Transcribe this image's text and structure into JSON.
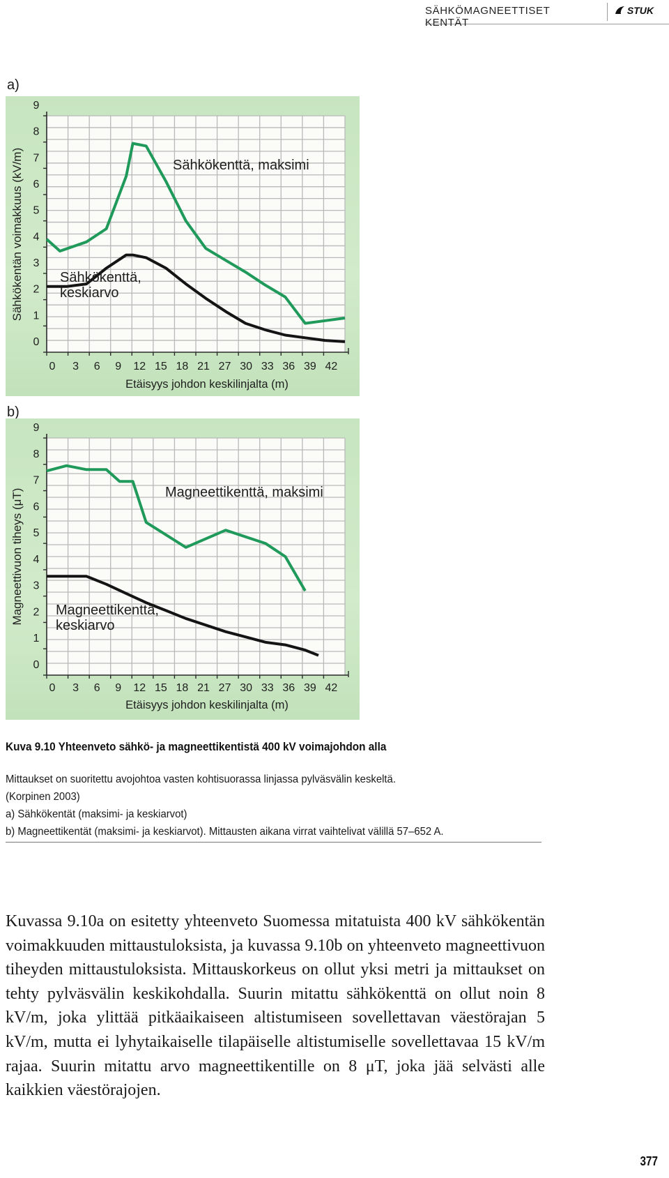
{
  "header": {
    "section_title": "SÄHKÖMAGNEETTISET KENTÄT",
    "logo_text": "STUK"
  },
  "figure": {
    "panel_a_label": "a)",
    "panel_b_label": "b)"
  },
  "chart_data": [
    {
      "type": "line",
      "ylabel": "Sähkökentän voimakkuus (kV/m)",
      "xlabel": "Etäisyys johdon keskilinjalta (m)",
      "x_ticks": [
        "0",
        "3",
        "6",
        "9",
        "12",
        "15",
        "18",
        "21",
        "27",
        "30",
        "33",
        "36",
        "39",
        "42"
      ],
      "y_ticks": [
        "0",
        "1",
        "2",
        "3",
        "4",
        "5",
        "6",
        "7",
        "8",
        "9"
      ],
      "ylim": [
        0,
        9
      ],
      "grid": true,
      "series": [
        {
          "label": "Sähkökenttä, maksimi",
          "color": "#1f9a5a",
          "points": [
            [
              0,
              4.3
            ],
            [
              2,
              3.85
            ],
            [
              6,
              4.2
            ],
            [
              9,
              4.7
            ],
            [
              12,
              6.7
            ],
            [
              13,
              7.95
            ],
            [
              15,
              7.85
            ],
            [
              18,
              6.5
            ],
            [
              21,
              5.0
            ],
            [
              24,
              3.95
            ],
            [
              27,
              3.5
            ],
            [
              30,
              3.05
            ],
            [
              33,
              2.55
            ],
            [
              36,
              2.1
            ],
            [
              39,
              1.1
            ],
            [
              42,
              1.2
            ],
            [
              45,
              1.3
            ]
          ]
        },
        {
          "label": "Sähkökenttä, keskiarvo",
          "color": "#141414",
          "points": [
            [
              0,
              2.5
            ],
            [
              3,
              2.5
            ],
            [
              6,
              2.6
            ],
            [
              9,
              3.2
            ],
            [
              12,
              3.7
            ],
            [
              13,
              3.7
            ],
            [
              15,
              3.6
            ],
            [
              18,
              3.2
            ],
            [
              21,
              2.6
            ],
            [
              24,
              2.05
            ],
            [
              27,
              1.55
            ],
            [
              30,
              1.1
            ],
            [
              33,
              0.85
            ],
            [
              36,
              0.65
            ],
            [
              39,
              0.55
            ],
            [
              42,
              0.45
            ],
            [
              45,
              0.4
            ]
          ]
        }
      ]
    },
    {
      "type": "line",
      "ylabel": "Magneettivuon tiheys (μT)",
      "xlabel": "Etäisyys johdon keskilinjalta (m)",
      "x_ticks": [
        "0",
        "3",
        "6",
        "9",
        "12",
        "15",
        "18",
        "21",
        "27",
        "30",
        "33",
        "36",
        "39",
        "42"
      ],
      "y_ticks": [
        "0",
        "1",
        "2",
        "3",
        "4",
        "5",
        "6",
        "7",
        "8",
        "9"
      ],
      "ylim": [
        0,
        9
      ],
      "grid": true,
      "series": [
        {
          "label": "Magneettikenttä, maksimi",
          "color": "#1f9a5a",
          "points": [
            [
              0,
              7.75
            ],
            [
              3,
              7.95
            ],
            [
              6,
              7.8
            ],
            [
              9,
              7.8
            ],
            [
              11,
              7.35
            ],
            [
              13,
              7.35
            ],
            [
              15,
              5.8
            ],
            [
              21,
              4.85
            ],
            [
              27,
              5.5
            ],
            [
              33,
              5.0
            ],
            [
              36,
              4.5
            ],
            [
              39,
              3.2
            ]
          ]
        },
        {
          "label": "Magneettikenttä, keskiarvo",
          "color": "#141414",
          "points": [
            [
              0,
              3.75
            ],
            [
              6,
              3.75
            ],
            [
              9,
              3.45
            ],
            [
              12,
              3.1
            ],
            [
              15,
              2.75
            ],
            [
              18,
              2.45
            ],
            [
              21,
              2.15
            ],
            [
              27,
              1.65
            ],
            [
              30,
              1.45
            ],
            [
              33,
              1.25
            ],
            [
              36,
              1.15
            ],
            [
              39,
              0.95
            ],
            [
              41,
              0.75
            ]
          ]
        }
      ]
    }
  ],
  "caption": {
    "title": "Kuva 9.10 Yhteenveto sähkö- ja magneettikentistä 400 kV voimajohdon alla",
    "line1": "Mittaukset on suoritettu avojohtoa vasten kohtisuorassa linjassa pylväsvälin keskeltä.",
    "line2": "(Korpinen 2003)",
    "line3": "a) Sähkökentät (maksimi- ja keskiarvot)",
    "line4": "b) Magneettikentät (maksimi- ja keskiarvot). Mittausten aikana virrat vaihtelivat välillä 57–652 A."
  },
  "body_paragraph": "Kuvassa 9.10a on esitetty yhteenveto Suomessa mitatuista 400 kV sähkökentän voimakkuuden mittaustuloksista, ja kuvassa 9.10b on yhteenveto magneettivuon tiheyden mittaustuloksista. Mittauskorkeus on ollut yksi metri ja mittaukset on tehty pylväsvälin keskikohdalla. Suurin mitattu sähkökenttä on ollut noin 8 kV/m, joka ylittää pitkäaikaiseen altistumiseen sovellettavan väestörajan 5 kV/m, mutta ei lyhytaikaiselle tilapäiselle altistumiselle sovellettavaa 15 kV/m rajaa. Suurin mitattu arvo magneettikentille on 8 μT, joka jää selvästi alle kaikkien väestörajojen.",
  "page_number": "377"
}
